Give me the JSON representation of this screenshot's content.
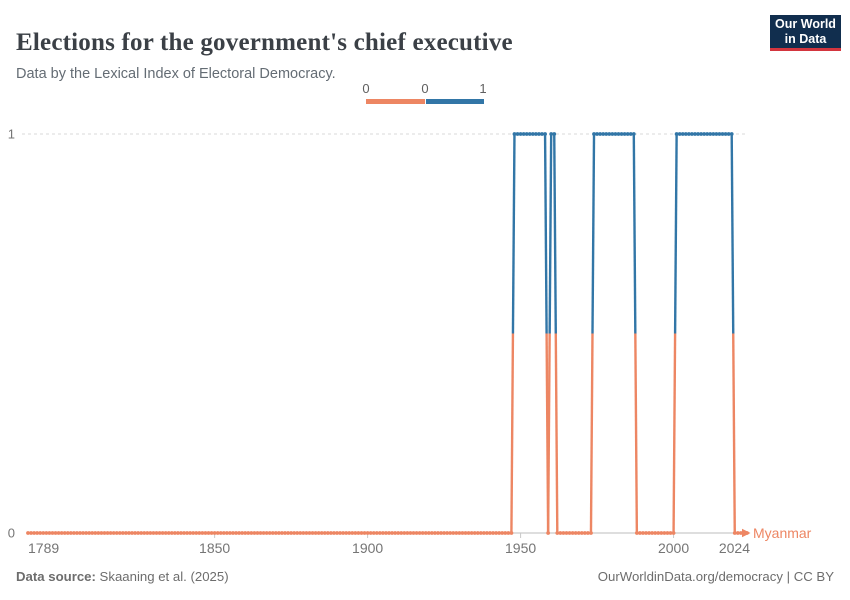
{
  "header": {
    "title": "Elections for the government's chief executive",
    "subtitle": "Data by the Lexical Index of Electoral Democracy.",
    "logo": {
      "line1": "Our World",
      "line2": "in Data"
    }
  },
  "chart_data": {
    "type": "line",
    "subtype": "binary-step",
    "title": "Elections for the government's chief executive",
    "entity": "Myanmar",
    "x_range": [
      1789,
      2024
    ],
    "x_ticks": [
      1789,
      1850,
      1900,
      1950,
      2000,
      2024
    ],
    "y_ticks": [
      0,
      1
    ],
    "ylim": [
      0,
      1
    ],
    "grid": "dashed line at y=1, solid baseline at y=0",
    "legend": {
      "tick_labels": [
        "0",
        "0",
        "1"
      ],
      "position": "top-center"
    },
    "colors": {
      "value_0": "#ED8663",
      "value_1": "#3276A7"
    },
    "segments": [
      {
        "value": 0,
        "start": 1789,
        "end": 1947
      },
      {
        "value": 1,
        "start": 1948,
        "end": 1958
      },
      {
        "value": 0,
        "start": 1959,
        "end": 1959
      },
      {
        "value": 1,
        "start": 1960,
        "end": 1961
      },
      {
        "value": 0,
        "start": 1962,
        "end": 1973
      },
      {
        "value": 1,
        "start": 1974,
        "end": 1987
      },
      {
        "value": 0,
        "start": 1988,
        "end": 2000
      },
      {
        "value": 1,
        "start": 2001,
        "end": 2019
      },
      {
        "value": 0,
        "start": 2020,
        "end": 2024
      }
    ]
  },
  "footer": {
    "source_label": "Data source:",
    "source_value": " Skaaning et al. (2025)",
    "right": "OurWorldinData.org/democracy | CC BY"
  }
}
